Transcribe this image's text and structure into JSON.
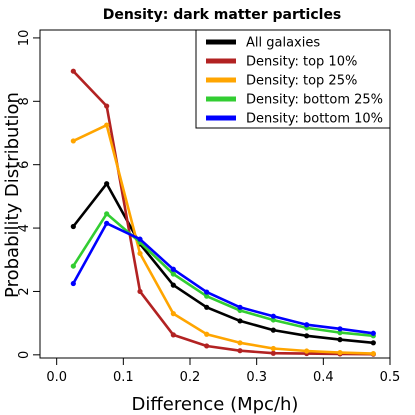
{
  "chart_data": {
    "type": "line",
    "title": "Density: dark matter particles",
    "xlabel": "Difference (Mpc/h)",
    "ylabel": "Probability Distribution",
    "xlim": [
      -0.025,
      0.5
    ],
    "ylim": [
      -0.1,
      10.25
    ],
    "xticks": [
      0.0,
      0.1,
      0.2,
      0.3,
      0.4,
      0.5
    ],
    "xtick_labels": [
      "0.0",
      "0.1",
      "0.2",
      "0.3",
      "0.4",
      "0.5"
    ],
    "yticks": [
      0,
      2,
      4,
      6,
      8,
      10
    ],
    "ytick_labels": [
      "0",
      "2",
      "4",
      "6",
      "8",
      "10"
    ],
    "x": [
      0.025,
      0.075,
      0.125,
      0.175,
      0.225,
      0.275,
      0.325,
      0.375,
      0.425,
      0.475
    ],
    "grid": false,
    "legend_position": "top-right",
    "series": [
      {
        "name": "All galaxies",
        "color": "#000000",
        "values": [
          4.05,
          5.4,
          3.5,
          2.2,
          1.5,
          1.07,
          0.78,
          0.6,
          0.48,
          0.38
        ]
      },
      {
        "name": "Density: top 10%",
        "color": "#b22222",
        "values": [
          8.95,
          7.85,
          2.0,
          0.63,
          0.28,
          0.13,
          0.05,
          0.04,
          0.03,
          0.02
        ]
      },
      {
        "name": "Density: top 25%",
        "color": "#ffa500",
        "values": [
          6.75,
          7.25,
          3.2,
          1.3,
          0.65,
          0.38,
          0.2,
          0.12,
          0.07,
          0.04
        ]
      },
      {
        "name": "Density: bottom 25%",
        "color": "#32cd32",
        "values": [
          2.8,
          4.45,
          3.55,
          2.55,
          1.85,
          1.4,
          1.1,
          0.85,
          0.7,
          0.6
        ]
      },
      {
        "name": "Density: bottom 10%",
        "color": "#0000ff",
        "values": [
          2.25,
          4.15,
          3.65,
          2.7,
          1.98,
          1.5,
          1.22,
          0.95,
          0.82,
          0.68
        ]
      }
    ]
  }
}
